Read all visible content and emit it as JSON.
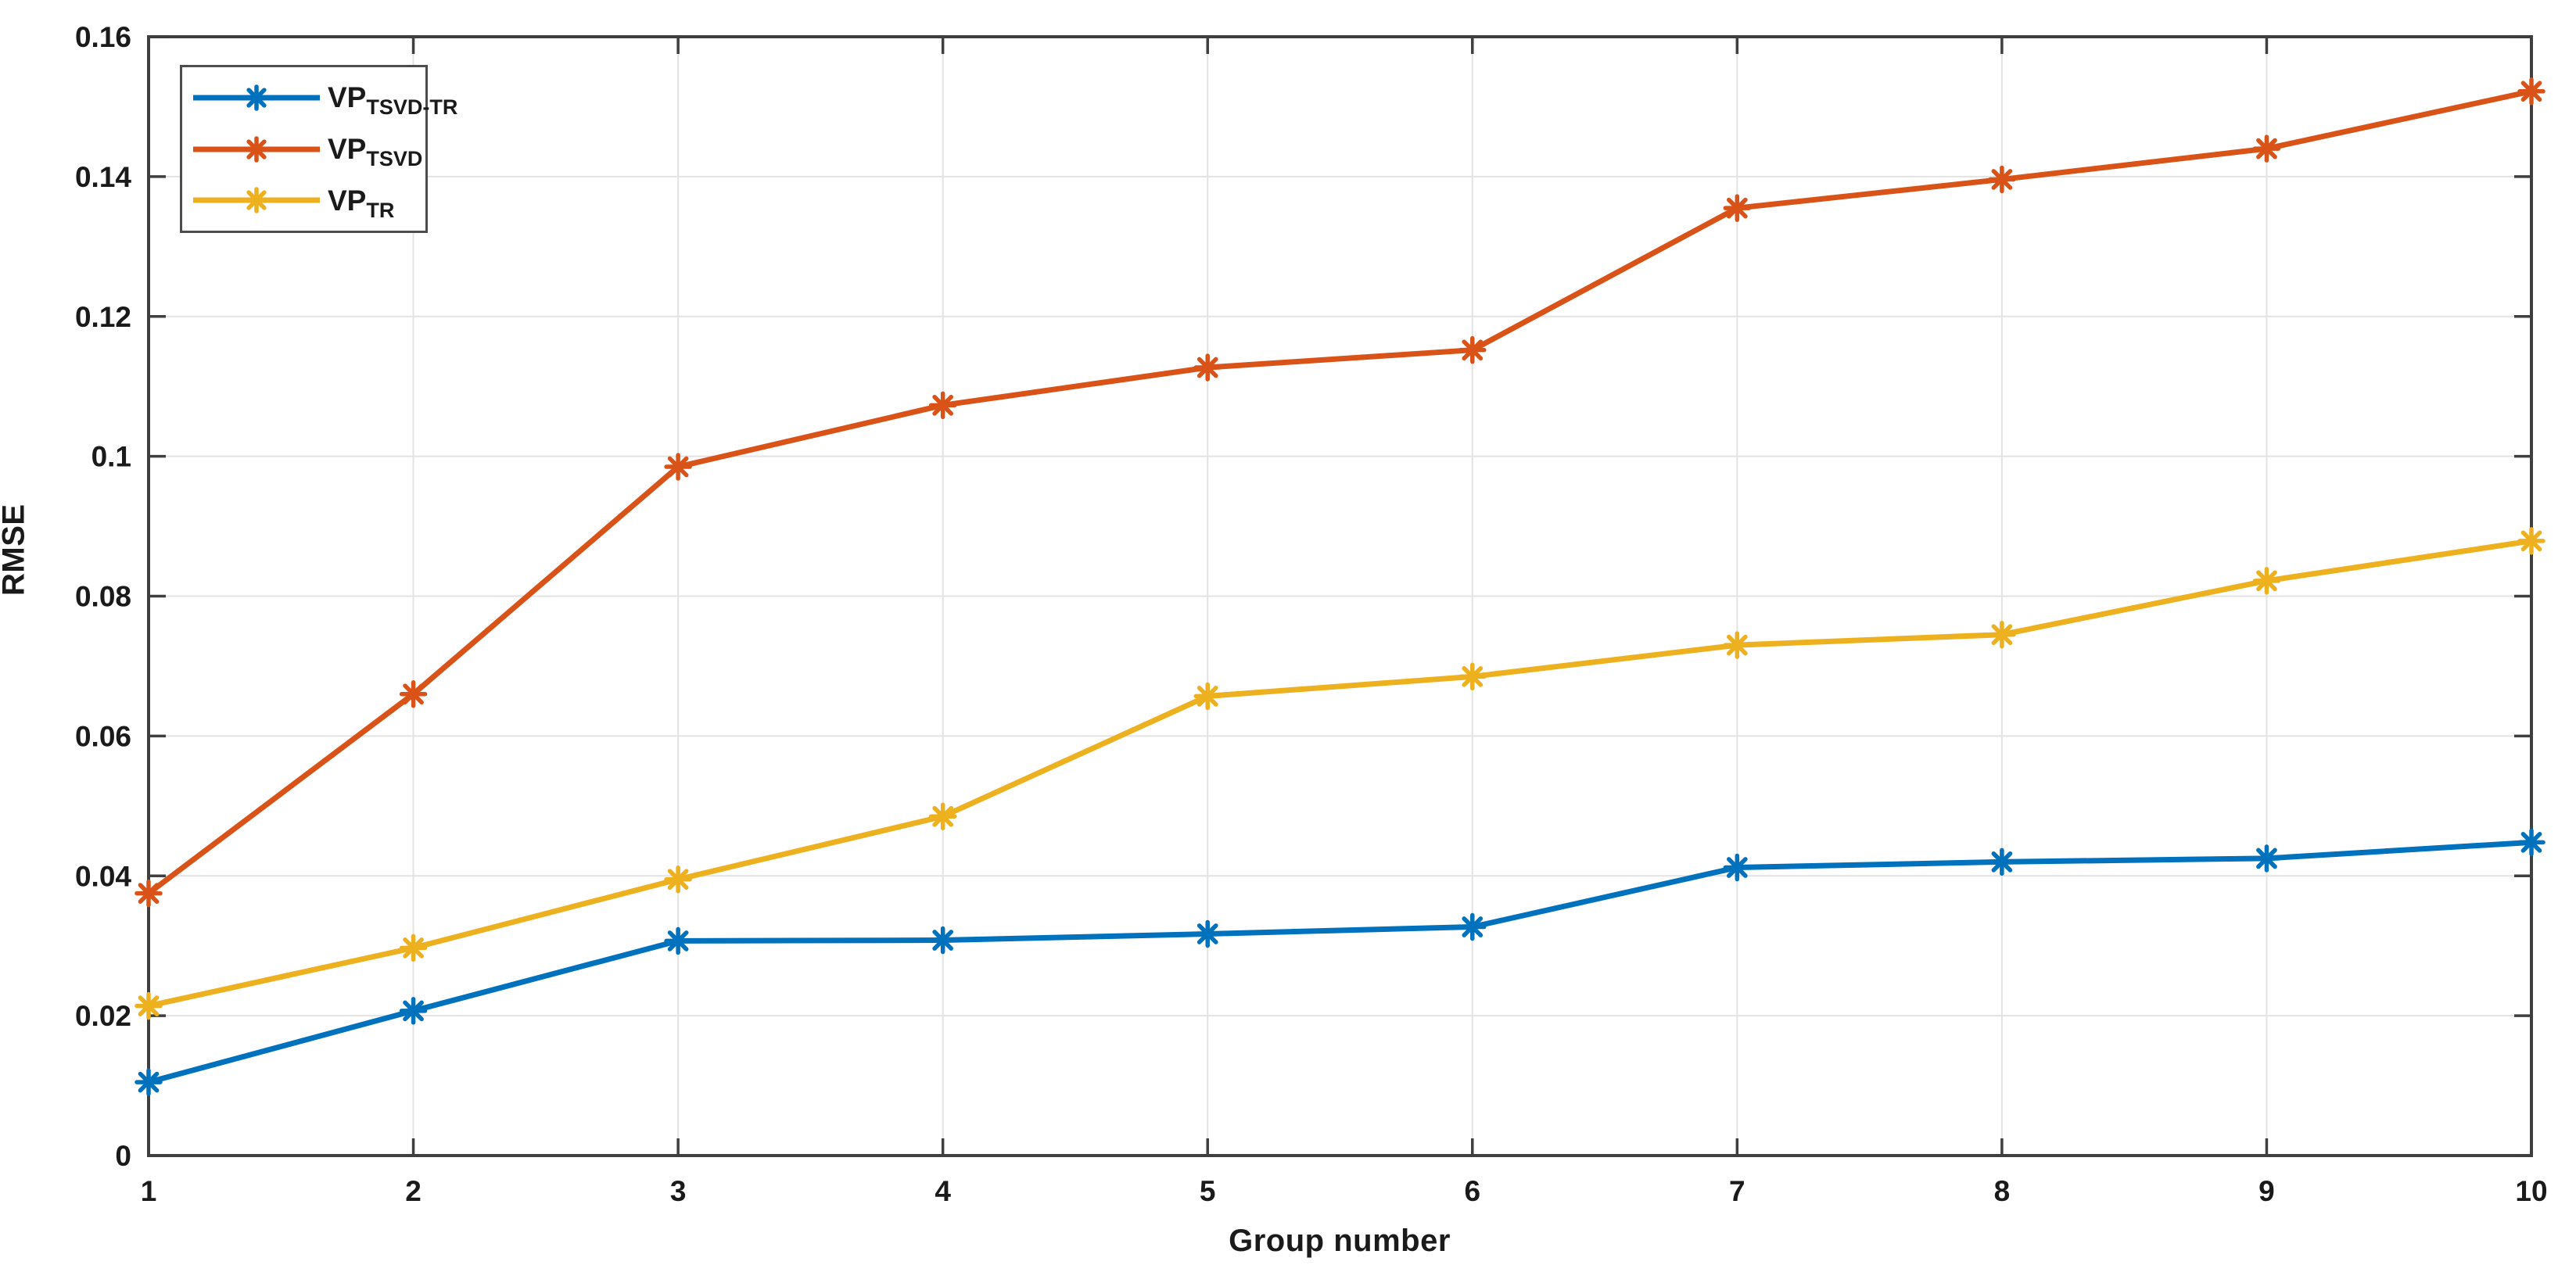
{
  "figure": {
    "background": "#ffffff",
    "text_color": "#1a1a1a",
    "axis_color": "#3f3f3f",
    "grid_color": "#e3e3e3"
  },
  "chart_data": {
    "type": "line",
    "title": "",
    "xlabel": "Group number",
    "ylabel": "RMSE",
    "x": [
      1,
      2,
      3,
      4,
      5,
      6,
      7,
      8,
      9,
      10
    ],
    "xlim": [
      1,
      10
    ],
    "ylim": [
      0,
      0.16
    ],
    "xtick_values": [
      1,
      2,
      3,
      4,
      5,
      6,
      7,
      8,
      9,
      10
    ],
    "xtick_labels": [
      "1",
      "2",
      "3",
      "4",
      "5",
      "6",
      "7",
      "8",
      "9",
      "10"
    ],
    "ytick_values": [
      0,
      0.02,
      0.04,
      0.06,
      0.08,
      0.1,
      0.12,
      0.14,
      0.16
    ],
    "ytick_labels": [
      "0",
      "0.02",
      "0.04",
      "0.06",
      "0.08",
      "0.1",
      "0.12",
      "0.14",
      "0.16"
    ],
    "grid": true,
    "box": true,
    "tick_direction": "in",
    "marker": "asterisk",
    "legend_position": "top-left",
    "series": [
      {
        "name": "VP_TSVD-TR",
        "label_main": "VP",
        "label_sub": "TSVD-TR",
        "color": "#0072BD",
        "values": [
          0.0105,
          0.0207,
          0.0307,
          0.0308,
          0.0317,
          0.0327,
          0.0412,
          0.042,
          0.0425,
          0.0448
        ]
      },
      {
        "name": "VP_TSVD",
        "label_main": "VP",
        "label_sub": "TSVD",
        "color": "#D95319",
        "values": [
          0.0375,
          0.066,
          0.0985,
          0.1073,
          0.1127,
          0.1152,
          0.1355,
          0.1396,
          0.144,
          0.1522
        ]
      },
      {
        "name": "VP_TR",
        "label_main": "VP",
        "label_sub": "TR",
        "color": "#EDB120",
        "values": [
          0.0214,
          0.0297,
          0.0395,
          0.0485,
          0.0657,
          0.0685,
          0.073,
          0.0745,
          0.0822,
          0.0879
        ]
      }
    ]
  }
}
